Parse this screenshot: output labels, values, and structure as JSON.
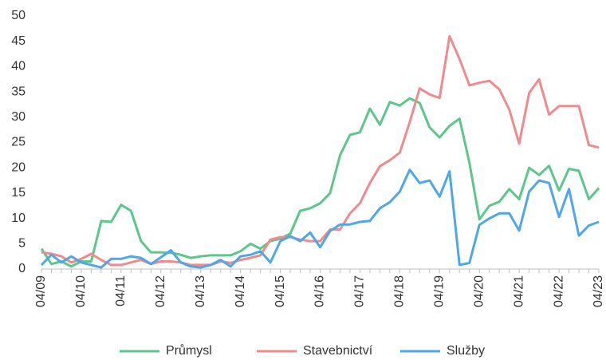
{
  "chart_data": {
    "type": "line",
    "categories": [
      "04/09",
      null,
      null,
      null,
      "04/10",
      null,
      null,
      null,
      "04/11",
      null,
      null,
      null,
      "04/12",
      null,
      null,
      null,
      "04/13",
      null,
      null,
      null,
      "04/14",
      null,
      null,
      null,
      "04/15",
      null,
      null,
      null,
      "04/16",
      null,
      null,
      null,
      "04/17",
      null,
      null,
      null,
      "04/18",
      null,
      null,
      null,
      "04/19",
      null,
      null,
      null,
      "04/20",
      null,
      null,
      null,
      "04/21",
      null,
      null,
      null,
      "04/22",
      null,
      null,
      null,
      "04/23"
    ],
    "series": [
      {
        "name": "Průmysl",
        "color": "#5cc68b",
        "values": [
          4,
          1,
          1.5,
          0.5,
          1.5,
          1.5,
          9.5,
          9.3,
          12.7,
          11.5,
          5.5,
          3.3,
          3.3,
          3.2,
          2.8,
          2.2,
          2.5,
          2.7,
          2.7,
          2.7,
          3.5,
          5,
          4,
          5.5,
          6,
          7,
          11.5,
          12,
          13,
          15,
          22.5,
          26.5,
          27,
          31.7,
          28.5,
          33,
          32.3,
          33.7,
          32.8,
          28,
          26,
          28.3,
          29.7,
          21,
          9.8,
          12.5,
          13.3,
          15.8,
          13.8,
          20,
          18.6,
          20.4,
          15.5,
          19.8,
          19.4,
          13.8,
          16
        ]
      },
      {
        "name": "Stavebnictví",
        "color": "#f08a8c",
        "values": [
          3.3,
          3,
          2.5,
          1.3,
          2,
          3,
          1.8,
          0.8,
          0.8,
          1.3,
          1.8,
          1,
          1.5,
          1.5,
          1.3,
          0.8,
          0.8,
          0.8,
          1.5,
          1.2,
          1.8,
          2.2,
          2.7,
          5.8,
          6.3,
          6.3,
          5.8,
          5.5,
          5.5,
          7.8,
          7.8,
          11,
          13,
          17,
          20.3,
          21.5,
          23,
          29,
          35.7,
          34.5,
          33.8,
          46,
          41.5,
          36.3,
          36.8,
          37.2,
          35.5,
          31.5,
          24.8,
          34.8,
          37.5,
          30.5,
          32.2,
          32.2,
          32.2,
          24.5,
          24
        ]
      },
      {
        "name": "Služby",
        "color": "#4ea7e6",
        "values": [
          0.8,
          2.8,
          1.3,
          2.5,
          1.3,
          0.8,
          0.3,
          2,
          2,
          2.5,
          2.2,
          1,
          2.3,
          3.7,
          1.3,
          0.5,
          0.3,
          0.8,
          1.8,
          0.5,
          2.5,
          2.8,
          3.5,
          1.3,
          5.5,
          6.5,
          5.5,
          7.2,
          4.3,
          7.5,
          8.8,
          8.8,
          9.3,
          9.5,
          12,
          13.2,
          15.3,
          19.6,
          17,
          17.5,
          14.3,
          19.3,
          0.8,
          1.2,
          8.7,
          10,
          11,
          11,
          7.6,
          15.3,
          17.5,
          17,
          10.3,
          15.8,
          6.6,
          8.6,
          9.3
        ]
      }
    ],
    "ylim": [
      0,
      50
    ],
    "yticks": [
      0,
      5,
      10,
      15,
      20,
      25,
      30,
      35,
      40,
      45,
      50
    ],
    "grid": false,
    "legend": "bottom"
  }
}
